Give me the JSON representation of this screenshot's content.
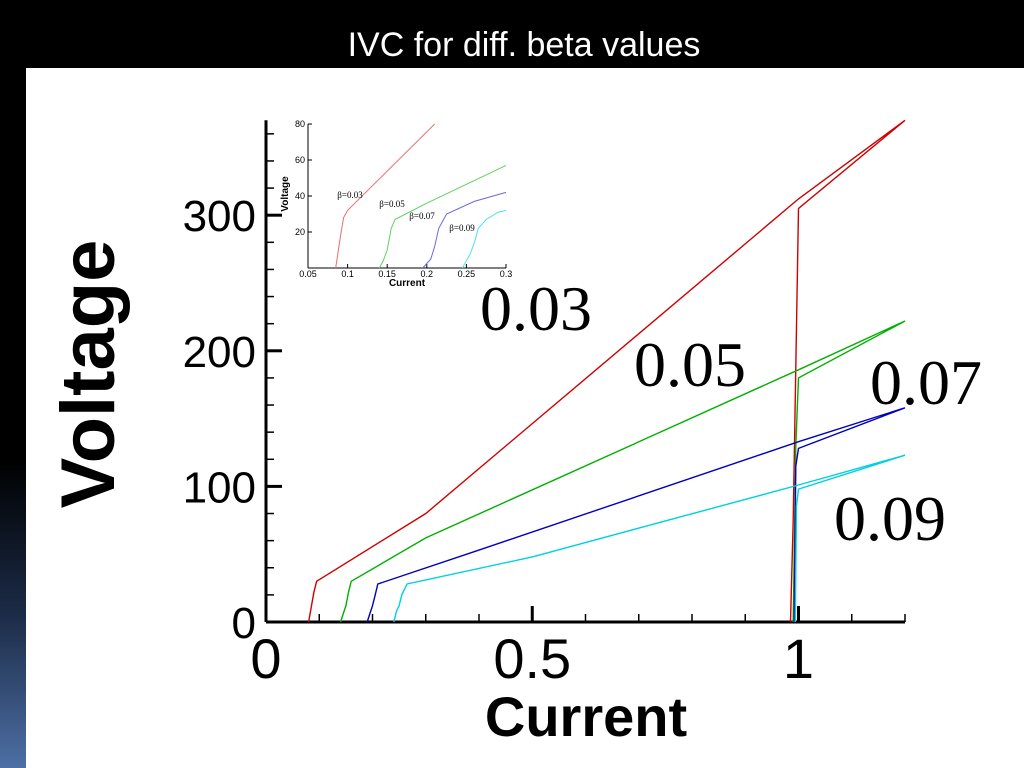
{
  "slide": {
    "title": "IVC for diff. beta values"
  },
  "chart_data": {
    "type": "line",
    "xlabel": "Current",
    "ylabel": "Voltage",
    "xlim": [
      0,
      1.2
    ],
    "ylim": [
      0,
      370
    ],
    "xticks": [
      {
        "value": 0,
        "label": "0"
      },
      {
        "value": 0.5,
        "label": "0.5"
      },
      {
        "value": 1,
        "label": "1"
      }
    ],
    "yticks": [
      {
        "value": 0,
        "label": "0"
      },
      {
        "value": 100,
        "label": "100"
      },
      {
        "value": 200,
        "label": "200"
      },
      {
        "value": 300,
        "label": "300"
      }
    ],
    "series": [
      {
        "color": "#d00000",
        "points": [
          [
            0.08,
            0
          ],
          [
            0.09,
            22
          ],
          [
            0.095,
            30
          ],
          [
            0.3,
            80
          ],
          [
            1.0,
            312
          ],
          [
            1.2,
            370
          ],
          [
            1.0,
            305
          ],
          [
            0.99,
            75
          ],
          [
            0.985,
            0
          ]
        ],
        "label": "0.03"
      },
      {
        "color": "#00b000",
        "points": [
          [
            0.14,
            0
          ],
          [
            0.145,
            6
          ],
          [
            0.15,
            12
          ],
          [
            0.155,
            22
          ],
          [
            0.16,
            30
          ],
          [
            0.3,
            62
          ],
          [
            1.0,
            186
          ],
          [
            1.2,
            222
          ],
          [
            1.0,
            180
          ],
          [
            0.995,
            130
          ],
          [
            0.99,
            0
          ]
        ],
        "label": "0.05"
      },
      {
        "color": "#0000c0",
        "points": [
          [
            0.19,
            0
          ],
          [
            0.195,
            6
          ],
          [
            0.2,
            12
          ],
          [
            0.205,
            20
          ],
          [
            0.21,
            28
          ],
          [
            0.4,
            53
          ],
          [
            1.0,
            133
          ],
          [
            1.2,
            158
          ],
          [
            1.0,
            128
          ],
          [
            0.995,
            115
          ],
          [
            0.992,
            0
          ]
        ],
        "label": "0.07"
      },
      {
        "color": "#00d0e0",
        "points": [
          [
            0.24,
            0
          ],
          [
            0.245,
            8
          ],
          [
            0.25,
            12
          ],
          [
            0.255,
            20
          ],
          [
            0.265,
            28
          ],
          [
            0.5,
            48
          ],
          [
            1.0,
            101
          ],
          [
            1.2,
            123
          ],
          [
            1.0,
            98
          ],
          [
            0.996,
            85
          ],
          [
            0.994,
            0
          ]
        ],
        "label": "0.09"
      }
    ],
    "inset": {
      "xlabel": "Current",
      "ylabel": "Voltage",
      "xlim": [
        0.05,
        0.3
      ],
      "ylim": [
        0,
        80
      ],
      "xticks": [
        "0.05",
        "0.1",
        "0.15",
        "0.2",
        "0.25",
        "0.3"
      ],
      "yticks": [
        "20",
        "40",
        "60",
        "80"
      ],
      "series": [
        {
          "color": "#e87070",
          "points": [
            [
              0.085,
              0
            ],
            [
              0.09,
              15
            ],
            [
              0.095,
              28
            ],
            [
              0.1,
              32
            ],
            [
              0.21,
              80
            ]
          ],
          "label": "β=0.03"
        },
        {
          "color": "#60d060",
          "points": [
            [
              0.14,
              0
            ],
            [
              0.145,
              4
            ],
            [
              0.15,
              10
            ],
            [
              0.155,
              22
            ],
            [
              0.16,
              27
            ],
            [
              0.2,
              36
            ],
            [
              0.3,
              57
            ]
          ],
          "label": "β=0.05"
        },
        {
          "color": "#6a6ae0",
          "points": [
            [
              0.195,
              0
            ],
            [
              0.205,
              5
            ],
            [
              0.21,
              12
            ],
            [
              0.215,
              22
            ],
            [
              0.225,
              30
            ],
            [
              0.26,
              37
            ],
            [
              0.3,
              42
            ]
          ],
          "label": "β=0.07"
        },
        {
          "color": "#50e0f0",
          "points": [
            [
              0.245,
              0
            ],
            [
              0.255,
              8
            ],
            [
              0.26,
              14
            ],
            [
              0.265,
              22
            ],
            [
              0.275,
              27
            ],
            [
              0.29,
              31
            ],
            [
              0.3,
              32
            ]
          ],
          "label": "β=0.09"
        }
      ]
    }
  }
}
